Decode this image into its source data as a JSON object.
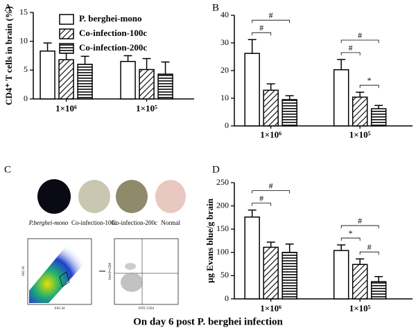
{
  "panel_labels": [
    "A",
    "B",
    "C",
    "D"
  ],
  "caption": "On day 6 post P. berghei infection",
  "brain_labels": [
    "P.berghei-mono",
    "Co-infection-100c",
    "Co-infection-200c",
    "Normal"
  ],
  "flow_axes": [
    "FSC-H",
    "SSC-H",
    "FITC-CD4",
    "PerCP-CD8"
  ],
  "chart_data": [
    {
      "type": "bar",
      "ylabel": "CD4⁺ T cells in brain (%)",
      "categories": [
        "1×10⁶",
        "1×10⁵"
      ],
      "ylim": [
        0,
        15
      ],
      "yticks": [
        0,
        5,
        10,
        15
      ],
      "legend": "upper-left",
      "series": [
        {
          "name": "P. berghei-mono",
          "color": "#000000",
          "pattern": "none",
          "values": [
            8.3,
            6.5
          ],
          "errors": [
            1.4,
            1.0
          ]
        },
        {
          "name": "Co-infection-100c",
          "color": "#000000",
          "pattern": "diagonal",
          "values": [
            6.8,
            5.1
          ],
          "errors": [
            2.0,
            1.9
          ]
        },
        {
          "name": "Co-infection-200c",
          "color": "#000000",
          "pattern": "horizontal",
          "values": [
            6.0,
            4.3
          ],
          "errors": [
            1.4,
            2.1
          ]
        }
      ]
    },
    {
      "type": "bar",
      "categories": [
        "1×10⁶",
        "1×10⁵"
      ],
      "ylim": [
        0,
        40
      ],
      "yticks": [
        0,
        10,
        20,
        30,
        40
      ],
      "annotations": [
        [
          "#",
          "#"
        ],
        [
          "#",
          "#",
          "*"
        ]
      ],
      "series": [
        {
          "color": "#000000",
          "pattern": "none",
          "values": [
            26.2,
            20.3
          ],
          "errors": [
            5.0,
            3.7
          ]
        },
        {
          "color": "#000000",
          "pattern": "diagonal",
          "values": [
            12.9,
            10.4
          ],
          "errors": [
            2.3,
            1.8
          ]
        },
        {
          "color": "#000000",
          "pattern": "horizontal",
          "values": [
            9.5,
            6.2
          ],
          "errors": [
            1.4,
            1.2
          ]
        }
      ]
    },
    {
      "type": "bar",
      "ylabel": "μg Evans blue/g brain",
      "categories": [
        "1×10⁶",
        "1×10⁵"
      ],
      "ylim": [
        0,
        250
      ],
      "yticks": [
        0,
        50,
        100,
        150,
        200,
        250
      ],
      "annotations": [
        [
          "#",
          "#"
        ],
        [
          "#",
          "*",
          "#"
        ]
      ],
      "series": [
        {
          "color": "#000000",
          "pattern": "none",
          "values": [
            176,
            104
          ],
          "errors": [
            15,
            12
          ]
        },
        {
          "color": "#000000",
          "pattern": "diagonal",
          "values": [
            111,
            74
          ],
          "errors": [
            11,
            12
          ]
        },
        {
          "color": "#000000",
          "pattern": "horizontal",
          "values": [
            100,
            37
          ],
          "errors": [
            18,
            11
          ]
        }
      ]
    }
  ]
}
